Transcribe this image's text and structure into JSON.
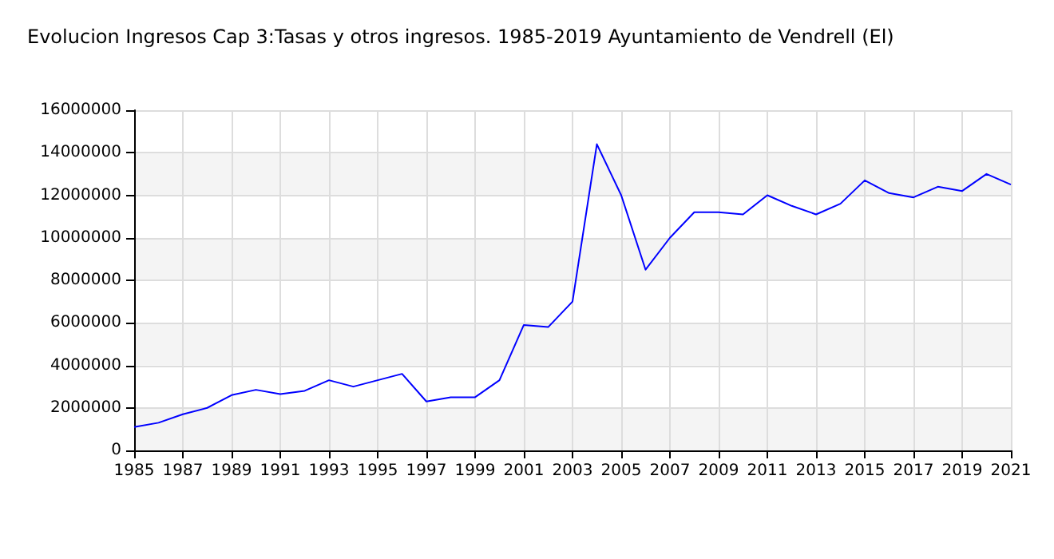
{
  "chart_data": {
    "type": "line",
    "title": "Evolucion Ingresos Cap 3:Tasas y otros ingresos. 1985-2019 Ayuntamiento de Vendrell (El)",
    "x": [
      1985,
      1986,
      1987,
      1988,
      1989,
      1990,
      1991,
      1992,
      1993,
      1994,
      1995,
      1996,
      1997,
      1998,
      1999,
      2000,
      2001,
      2002,
      2003,
      2004,
      2005,
      2006,
      2007,
      2008,
      2009,
      2010,
      2011,
      2012,
      2013,
      2014,
      2015,
      2016,
      2017,
      2018,
      2019,
      2020,
      2021
    ],
    "series": [
      {
        "color": "#0000ff",
        "values": [
          1100000,
          1300000,
          1700000,
          2000000,
          2600000,
          2850000,
          2650000,
          2800000,
          3300000,
          3000000,
          3300000,
          3600000,
          2300000,
          2500000,
          2500000,
          3300000,
          5900000,
          5800000,
          7000000,
          14400000,
          12000000,
          8500000,
          10000000,
          11200000,
          11200000,
          11100000,
          12000000,
          11500000,
          11100000,
          11600000,
          12700000,
          12100000,
          11900000,
          12400000,
          12200000,
          13000000,
          12500000
        ]
      }
    ],
    "xlim": [
      1985,
      2021
    ],
    "xticks": [
      1985,
      1987,
      1989,
      1991,
      1993,
      1995,
      1997,
      1999,
      2001,
      2003,
      2005,
      2007,
      2009,
      2011,
      2013,
      2015,
      2017,
      2019,
      2021
    ],
    "ylim": [
      0,
      16000000
    ],
    "yticks": [
      0,
      2000000,
      4000000,
      6000000,
      8000000,
      10000000,
      12000000,
      14000000,
      16000000
    ],
    "grid": true,
    "marker": "none",
    "line_style": "solid"
  }
}
